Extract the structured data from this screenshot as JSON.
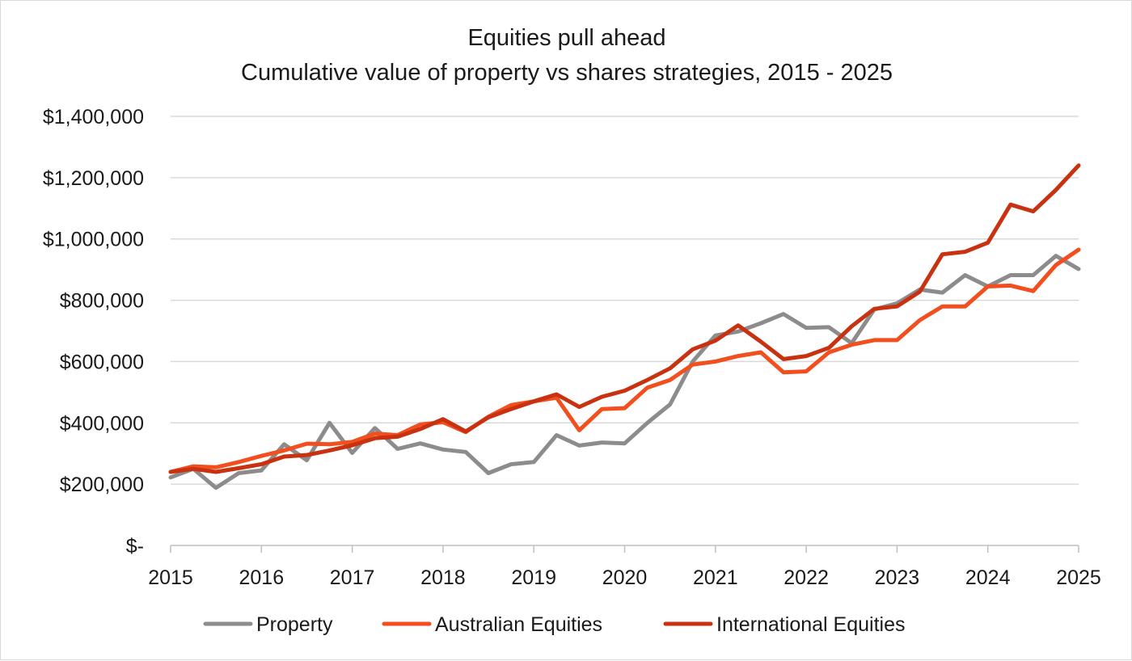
{
  "chart_data": {
    "type": "line",
    "title": "Equities pull ahead",
    "subtitle": "Cumulative value of property vs shares strategies, 2015 - 2025",
    "xlabel": "",
    "ylabel": "",
    "xlim": [
      2015,
      2025
    ],
    "ylim": [
      0,
      1400000
    ],
    "x_ticks": [
      "2015",
      "2016",
      "2017",
      "2018",
      "2019",
      "2020",
      "2021",
      "2022",
      "2023",
      "2024",
      "2025"
    ],
    "y_ticks": [
      "$-",
      "$200,000",
      "$400,000",
      "$600,000",
      "$800,000",
      "$1,000,000",
      "$1,200,000",
      "$1,400,000"
    ],
    "y_tick_values": [
      0,
      200000,
      400000,
      600000,
      800000,
      1000000,
      1200000,
      1400000
    ],
    "grid": "horizontal",
    "legend_position": "bottom",
    "x": [
      2015,
      2015.25,
      2015.5,
      2015.75,
      2016,
      2016.25,
      2016.5,
      2016.75,
      2017,
      2017.25,
      2017.5,
      2017.75,
      2018,
      2018.25,
      2018.5,
      2018.75,
      2019,
      2019.25,
      2019.5,
      2019.75,
      2020,
      2020.25,
      2020.5,
      2020.75,
      2021,
      2021.25,
      2021.5,
      2021.75,
      2022,
      2022.25,
      2022.5,
      2022.75,
      2023,
      2023.25,
      2023.5,
      2023.75,
      2024,
      2024.25,
      2024.5,
      2024.75,
      2025
    ],
    "series": [
      {
        "name": "Property",
        "color": "#8c8c8c",
        "values": [
          222000,
          250000,
          188000,
          236000,
          245000,
          330000,
          278000,
          400000,
          302000,
          383000,
          315000,
          333000,
          313000,
          305000,
          236000,
          265000,
          272000,
          360000,
          326000,
          336000,
          333000,
          400000,
          460000,
          600000,
          685000,
          698000,
          725000,
          755000,
          710000,
          712000,
          660000,
          770000,
          790000,
          835000,
          825000,
          882000,
          845000,
          882000,
          882000,
          945000,
          902000
        ]
      },
      {
        "name": "Australian Equities",
        "color": "#f24e1e",
        "values": [
          240000,
          258000,
          255000,
          272000,
          292000,
          310000,
          332000,
          330000,
          338000,
          365000,
          360000,
          395000,
          402000,
          370000,
          420000,
          458000,
          470000,
          482000,
          376000,
          445000,
          448000,
          515000,
          540000,
          590000,
          600000,
          618000,
          630000,
          565000,
          568000,
          630000,
          655000,
          670000,
          670000,
          735000,
          780000,
          780000,
          845000,
          848000,
          830000,
          915000,
          965000
        ]
      },
      {
        "name": "International Equities",
        "color": "#c93210",
        "values": [
          240000,
          250000,
          240000,
          252000,
          265000,
          290000,
          295000,
          310000,
          327000,
          350000,
          355000,
          380000,
          412000,
          372000,
          418000,
          445000,
          470000,
          493000,
          452000,
          485000,
          505000,
          540000,
          578000,
          640000,
          668000,
          718000,
          665000,
          608000,
          618000,
          645000,
          715000,
          772000,
          780000,
          828000,
          950000,
          958000,
          988000,
          1112000,
          1090000,
          1160000,
          1240000
        ]
      }
    ]
  }
}
